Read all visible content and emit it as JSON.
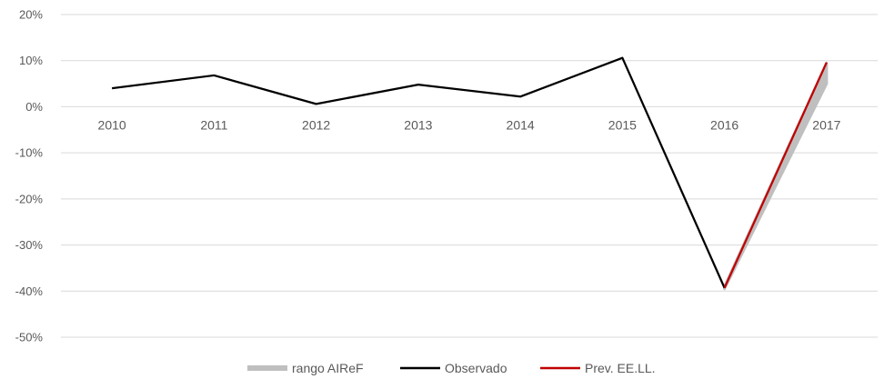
{
  "chart_data": {
    "type": "line",
    "x": [
      "2010",
      "2011",
      "2012",
      "2013",
      "2014",
      "2015",
      "2016",
      "2017"
    ],
    "ylim": [
      -50,
      20
    ],
    "yticks": [
      20,
      10,
      0,
      -10,
      -20,
      -30,
      -40,
      -50
    ],
    "ytick_labels": [
      "20%",
      "10%",
      "0%",
      "-10%",
      "-20%",
      "-30%",
      "-40%",
      "-50%"
    ],
    "grid": true,
    "legend_position": "bottom",
    "series": [
      {
        "name": "rango AIReF",
        "kind": "band",
        "color": "#bfbfbf",
        "x": [
          "2016",
          "2017"
        ],
        "low": [
          -39.5,
          5
        ],
        "high": [
          -39,
          9.5
        ]
      },
      {
        "name": "Observado",
        "kind": "line",
        "color": "#000000",
        "values": [
          4,
          6.8,
          0.6,
          4.8,
          2.2,
          10.6,
          -39.3,
          null
        ]
      },
      {
        "name": "Prev. EE.LL.",
        "kind": "line",
        "color": "#c00000",
        "x": [
          "2016",
          "2017"
        ],
        "values": [
          -39.3,
          9.6
        ]
      }
    ]
  }
}
